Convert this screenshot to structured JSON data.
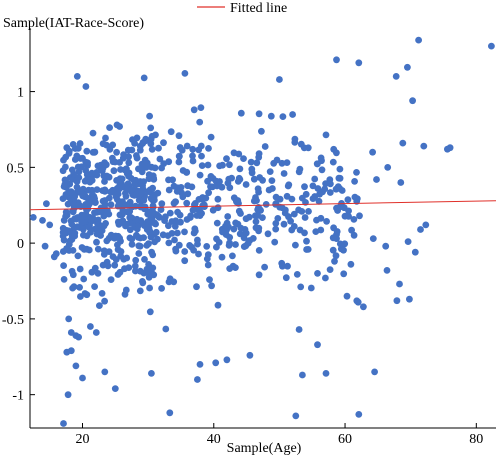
{
  "chart_data": {
    "type": "scatter",
    "ylabel": "Sample(IAT-Race-Score)",
    "xlabel": "Sample(Age)",
    "legend": {
      "position": "top-center",
      "entries": [
        {
          "label": "Fitted line",
          "color": "#e0302a",
          "kind": "line"
        }
      ]
    },
    "xlim": [
      12,
      83
    ],
    "ylim": [
      -1.22,
      1.38
    ],
    "xticks": [
      20,
      40,
      60,
      80
    ],
    "yticks": [
      1,
      0.5,
      0,
      -0.5,
      -1
    ],
    "xtick_labels": [
      "20",
      "40",
      "60",
      "80"
    ],
    "ytick_labels": [
      "1",
      "0.5",
      "0",
      "-0.5",
      "-1"
    ],
    "grid": false,
    "colors": {
      "points": "#4472c4",
      "fit": "#e0302a"
    },
    "fitted_line": {
      "x": [
        12,
        83
      ],
      "y": [
        0.22,
        0.28
      ]
    },
    "point_count": 900,
    "points": [
      [
        71.2,
        1.34
      ],
      [
        82.3,
        1.3
      ],
      [
        58.7,
        1.21
      ],
      [
        69.5,
        1.16
      ],
      [
        62.1,
        1.19
      ],
      [
        67.8,
        1.1
      ],
      [
        50.0,
        1.08
      ],
      [
        35.6,
        1.12
      ],
      [
        29.4,
        1.09
      ],
      [
        19.2,
        1.1
      ],
      [
        75.6,
        0.62
      ],
      [
        72.0,
        0.64
      ],
      [
        68.8,
        0.66
      ],
      [
        64.2,
        0.6
      ],
      [
        66.5,
        0.5
      ],
      [
        70.3,
        0.94
      ],
      [
        64.8,
        0.42
      ],
      [
        68.5,
        0.4
      ],
      [
        76.0,
        0.63
      ],
      [
        72.3,
        0.12
      ],
      [
        71.5,
        0.09
      ],
      [
        69.6,
        0.01
      ],
      [
        64.3,
        0.03
      ],
      [
        70.7,
        -0.06
      ],
      [
        66.2,
        -0.02
      ],
      [
        66.4,
        -0.18
      ],
      [
        67.9,
        -0.38
      ],
      [
        69.8,
        -0.37
      ],
      [
        68.3,
        -0.27
      ],
      [
        60.3,
        -0.35
      ],
      [
        62.0,
        -0.39
      ],
      [
        64.5,
        -0.85
      ],
      [
        57.1,
        -0.86
      ],
      [
        62.1,
        -1.13
      ],
      [
        53.5,
        -0.87
      ],
      [
        52.5,
        -1.14
      ],
      [
        55.8,
        -0.67
      ],
      [
        53.0,
        -0.57
      ],
      [
        37.5,
        -0.9
      ],
      [
        33.3,
        -1.12
      ],
      [
        30.5,
        -0.86
      ],
      [
        25.0,
        -0.96
      ],
      [
        17.8,
        -1.0
      ],
      [
        17.1,
        -1.19
      ],
      [
        20.0,
        -0.89
      ],
      [
        23.4,
        -0.85
      ],
      [
        18.3,
        -0.71
      ],
      [
        17.6,
        -0.72
      ],
      [
        19.0,
        -0.81
      ],
      [
        45.5,
        -0.74
      ],
      [
        40.3,
        -0.79
      ],
      [
        42.0,
        -0.77
      ],
      [
        37.9,
        -0.8
      ],
      [
        18.3,
        -0.59
      ],
      [
        19.4,
        -0.62
      ],
      [
        19.0,
        -0.61
      ],
      [
        22.1,
        -0.59
      ],
      [
        21.2,
        -0.55
      ],
      [
        17.9,
        -0.5
      ],
      [
        62.8,
        -0.42
      ],
      [
        58.4,
        -0.12
      ],
      [
        60.9,
        -0.14
      ],
      [
        57.0,
        -0.23
      ],
      [
        55.8,
        -0.2
      ],
      [
        58.7,
        0.03
      ],
      [
        62.2,
        0.18
      ],
      [
        12.5,
        0.17
      ],
      [
        13.9,
        0.15
      ],
      [
        14.5,
        0.26
      ],
      [
        15.0,
        0.12
      ],
      [
        16.0,
        -0.07
      ],
      [
        15.7,
        -0.09
      ],
      [
        14.3,
        -0.02
      ]
    ]
  }
}
